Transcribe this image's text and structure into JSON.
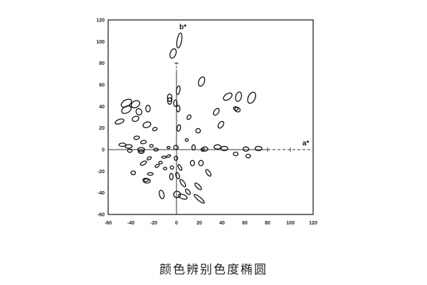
{
  "chart_data": {
    "type": "scatter",
    "title": "颜色辨别色度椭圆",
    "xlabel": "a*",
    "ylabel": "b*",
    "xlim": [
      -60,
      120
    ],
    "ylim": [
      -60,
      120
    ],
    "xticks": [
      -60,
      -40,
      -20,
      0,
      20,
      40,
      60,
      80,
      100,
      120
    ],
    "yticks": [
      -60,
      -40,
      -20,
      0,
      20,
      40,
      60,
      80,
      100,
      120
    ],
    "grid": false,
    "marker": "ellipse",
    "ellipse_fields": [
      "a",
      "b",
      "semi_axis_a",
      "semi_axis_b",
      "rotation_deg"
    ],
    "ellipses": [
      [
        2.5,
        101,
        2,
        7,
        10
      ],
      [
        -3,
        89,
        2.5,
        4.5,
        20
      ],
      [
        22,
        63,
        2.5,
        4.5,
        20
      ],
      [
        1.5,
        55,
        1.5,
        4,
        10
      ],
      [
        -6,
        48,
        2,
        3.5,
        0
      ],
      [
        -6,
        45,
        1.8,
        3,
        0
      ],
      [
        -1,
        43,
        1.5,
        3,
        0
      ],
      [
        1.5,
        38,
        1.5,
        3,
        0
      ],
      [
        -44,
        43,
        5,
        3,
        -30
      ],
      [
        -44,
        37,
        4.5,
        3,
        -30
      ],
      [
        -36,
        42,
        4,
        3,
        -30
      ],
      [
        -33,
        35,
        2.5,
        3,
        -20
      ],
      [
        -25,
        38,
        2,
        3,
        0
      ],
      [
        -50,
        26,
        4,
        2,
        -20
      ],
      [
        -36,
        28.5,
        3,
        2.3,
        -20
      ],
      [
        -26,
        23,
        3.5,
        2.5,
        -20
      ],
      [
        -19,
        19,
        2,
        1.5,
        -20
      ],
      [
        2,
        20,
        1.5,
        3,
        10
      ],
      [
        11,
        30,
        1.5,
        2.3,
        35
      ],
      [
        19,
        17.5,
        2,
        2,
        0
      ],
      [
        35,
        35,
        2,
        3.5,
        35
      ],
      [
        39,
        23,
        2,
        3.5,
        35
      ],
      [
        45,
        49,
        2.5,
        4.5,
        55
      ],
      [
        54.5,
        49,
        2.5,
        4.5,
        15
      ],
      [
        66,
        48,
        3,
        5.5,
        25
      ],
      [
        53.5,
        37,
        2.5,
        2,
        20
      ],
      [
        52,
        38,
        2,
        1.6,
        20
      ],
      [
        9,
        9,
        1.3,
        1.3,
        0
      ],
      [
        15,
        2,
        1.5,
        2.5,
        0
      ],
      [
        25,
        0.5,
        2.5,
        2,
        0
      ],
      [
        23,
        0,
        1.5,
        1.5,
        0
      ],
      [
        36,
        2.5,
        3,
        2,
        0
      ],
      [
        42,
        1,
        3,
        2,
        0
      ],
      [
        52,
        -4,
        2,
        1.7,
        0
      ],
      [
        61,
        0.5,
        2.5,
        2,
        0
      ],
      [
        63,
        -6,
        2,
        1.7,
        0
      ],
      [
        72,
        1,
        3,
        2,
        0
      ],
      [
        -47.5,
        4.5,
        3,
        1.5,
        0
      ],
      [
        -42,
        3,
        3,
        1.7,
        0
      ],
      [
        -41,
        -1,
        2,
        1.5,
        0
      ],
      [
        -35,
        11,
        2.5,
        1.5,
        -10
      ],
      [
        -29,
        7,
        2.5,
        1.5,
        -10
      ],
      [
        -31,
        0,
        3,
        2,
        0
      ],
      [
        -31,
        -2,
        2.5,
        1.5,
        0
      ],
      [
        -22,
        3.5,
        1.5,
        1.3,
        0
      ],
      [
        -18,
        0,
        2,
        1.3,
        0
      ],
      [
        -24,
        -8,
        2,
        1.2,
        -30
      ],
      [
        -29,
        -12.5,
        3,
        1.5,
        -30
      ],
      [
        -17,
        -15,
        2,
        1.2,
        -30
      ],
      [
        -14,
        -12,
        1.5,
        1.2,
        0
      ],
      [
        -11,
        -7,
        2,
        1,
        0
      ],
      [
        -7,
        -6,
        2,
        1,
        -20
      ],
      [
        -38,
        -21.5,
        2,
        1.7,
        0
      ],
      [
        -23,
        -22.5,
        2.5,
        1.2,
        0
      ],
      [
        -26,
        -29,
        3,
        2,
        0
      ],
      [
        -27,
        -28,
        2.5,
        1.5,
        0
      ],
      [
        -10,
        -17.5,
        1.5,
        1.2,
        0
      ],
      [
        -4,
        -16.5,
        1.5,
        1.5,
        0
      ],
      [
        -4.5,
        -25,
        1.5,
        3,
        0
      ],
      [
        1,
        -24,
        1.5,
        3,
        -20
      ],
      [
        3,
        -16.5,
        1.2,
        3,
        -30
      ],
      [
        -0.5,
        -8,
        1.5,
        2,
        0
      ],
      [
        -0.5,
        2,
        2,
        2,
        0
      ],
      [
        -7,
        2,
        1.3,
        1,
        0
      ],
      [
        5.5,
        -31,
        1.5,
        4,
        -35
      ],
      [
        10,
        -39,
        1.5,
        3,
        -40
      ],
      [
        19,
        -34,
        1.5,
        4,
        -45
      ],
      [
        20,
        -45.5,
        1.5,
        6,
        -50
      ],
      [
        28,
        -21.5,
        1.5,
        3.5,
        -35
      ],
      [
        14,
        -12.5,
        1.8,
        2.5,
        0
      ],
      [
        21.5,
        -12.5,
        2,
        2.5,
        0
      ],
      [
        -13,
        -41.5,
        2,
        4,
        -15
      ],
      [
        0.5,
        -41.5,
        3,
        3,
        0
      ],
      [
        5.5,
        -43.5,
        4,
        2,
        20
      ]
    ]
  }
}
